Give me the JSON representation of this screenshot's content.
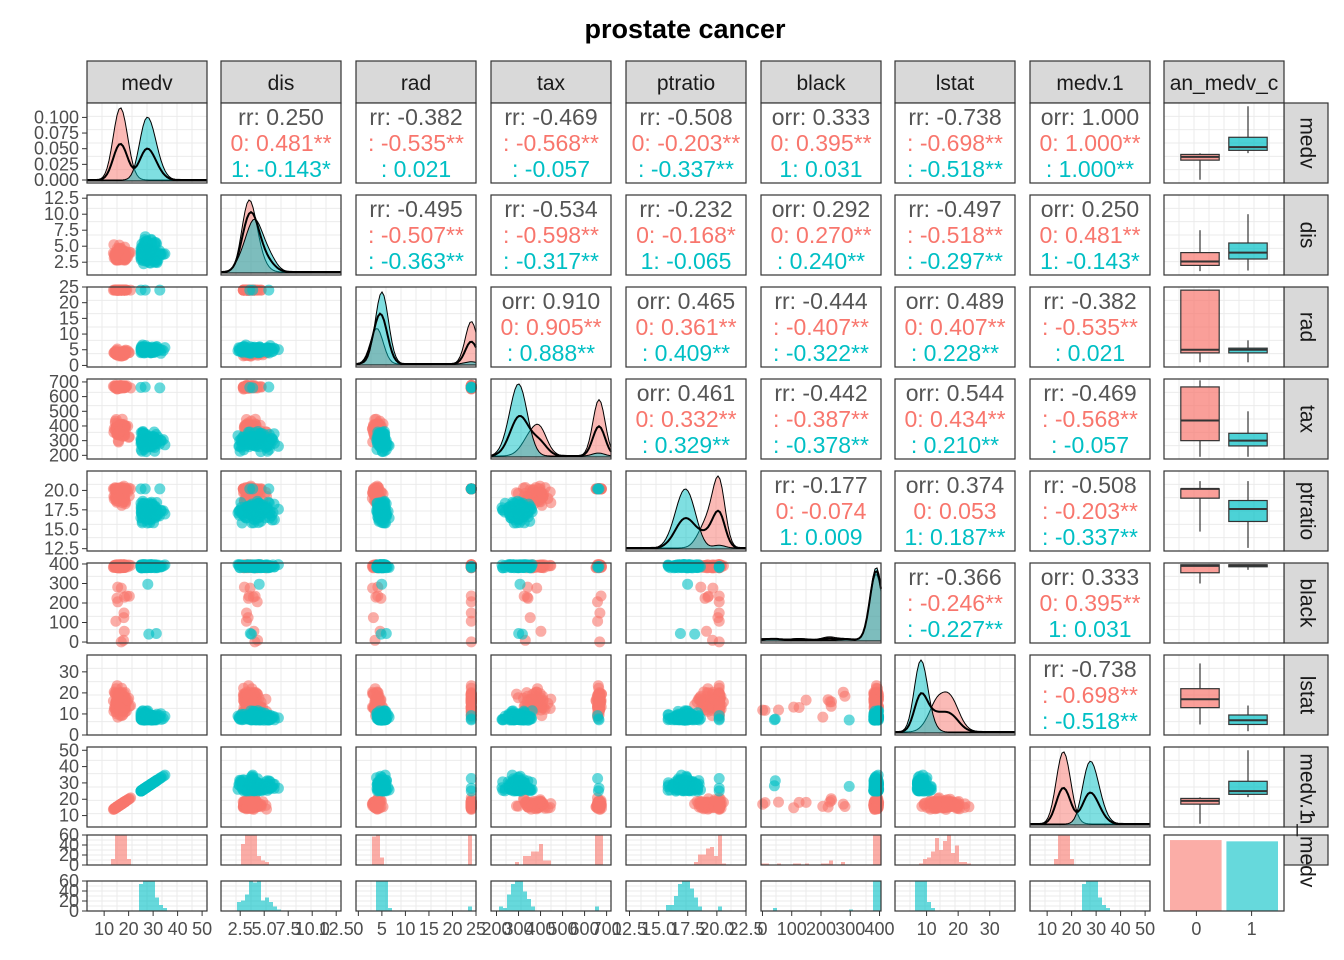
{
  "chart_data": {
    "type": "scatter",
    "title": "prostate cancer",
    "variables": [
      "medv",
      "dis",
      "rad",
      "tax",
      "ptratio",
      "black",
      "lstat",
      "medv.1",
      "median_medv_cat"
    ],
    "strip_labels": [
      "medv",
      "dis",
      "rad",
      "tax",
      "ptratio",
      "black",
      "lstat",
      "medv.1",
      "an_medv_c"
    ],
    "right_strip_labels": [
      "medv",
      "dis",
      "rad",
      "tax",
      "ptratio",
      "black",
      "lstat",
      "medv.1",
      "n_medv"
    ],
    "groups": [
      "0",
      "1"
    ],
    "colors": {
      "0": "#F8766D",
      "1": "#00BFC4",
      "overall": "#555555"
    },
    "correlations": [
      {
        "row": 0,
        "col": 1,
        "corr": "rr: 0.250",
        "g0": "0: 0.481**",
        "g1": "1: -0.143*"
      },
      {
        "row": 0,
        "col": 2,
        "corr": "rr: -0.382",
        "g0": ": -0.535**",
        "g1": ": 0.021"
      },
      {
        "row": 0,
        "col": 3,
        "corr": "rr: -0.469",
        "g0": ": -0.568**",
        "g1": ": -0.057"
      },
      {
        "row": 0,
        "col": 4,
        "corr": "rr: -0.508",
        "g0": "0: -0.203**",
        "g1": ": -0.337**"
      },
      {
        "row": 0,
        "col": 5,
        "corr": "orr: 0.333",
        "g0": "0: 0.395**",
        "g1": "1: 0.031"
      },
      {
        "row": 0,
        "col": 6,
        "corr": "rr: -0.738",
        "g0": ": -0.698**",
        "g1": ": -0.518**"
      },
      {
        "row": 0,
        "col": 7,
        "corr": "orr: 1.000",
        "g0": "0: 1.000**",
        "g1": ": 1.000**"
      },
      {
        "row": 1,
        "col": 2,
        "corr": "rr: -0.495",
        "g0": ": -0.507**",
        "g1": ": -0.363**"
      },
      {
        "row": 1,
        "col": 3,
        "corr": "rr: -0.534",
        "g0": ": -0.598**",
        "g1": ": -0.317**"
      },
      {
        "row": 1,
        "col": 4,
        "corr": "rr: -0.232",
        "g0": "0: -0.168*",
        "g1": "1: -0.065"
      },
      {
        "row": 1,
        "col": 5,
        "corr": "orr: 0.292",
        "g0": "0: 0.270**",
        "g1": ": 0.240**"
      },
      {
        "row": 1,
        "col": 6,
        "corr": "rr: -0.497",
        "g0": ": -0.518**",
        "g1": ": -0.297**"
      },
      {
        "row": 1,
        "col": 7,
        "corr": "orr: 0.250",
        "g0": "0: 0.481**",
        "g1": "1: -0.143*"
      },
      {
        "row": 2,
        "col": 3,
        "corr": "orr: 0.910",
        "g0": "0: 0.905**",
        "g1": ": 0.888**"
      },
      {
        "row": 2,
        "col": 4,
        "corr": "orr: 0.465",
        "g0": "0: 0.361**",
        "g1": ": 0.409**"
      },
      {
        "row": 2,
        "col": 5,
        "corr": "rr: -0.444",
        "g0": ": -0.407**",
        "g1": ": -0.322**"
      },
      {
        "row": 2,
        "col": 6,
        "corr": "orr: 0.489",
        "g0": "0: 0.407**",
        "g1": ": 0.228**"
      },
      {
        "row": 2,
        "col": 7,
        "corr": "rr: -0.382",
        "g0": ": -0.535**",
        "g1": ": 0.021"
      },
      {
        "row": 3,
        "col": 4,
        "corr": "orr: 0.461",
        "g0": "0: 0.332**",
        "g1": ": 0.329**"
      },
      {
        "row": 3,
        "col": 5,
        "corr": "rr: -0.442",
        "g0": ": -0.387**",
        "g1": ": -0.378**"
      },
      {
        "row": 3,
        "col": 6,
        "corr": "orr: 0.544",
        "g0": "0: 0.434**",
        "g1": ": 0.210**"
      },
      {
        "row": 3,
        "col": 7,
        "corr": "rr: -0.469",
        "g0": ": -0.568**",
        "g1": ": -0.057"
      },
      {
        "row": 4,
        "col": 5,
        "corr": "rr: -0.177",
        "g0": "0: -0.074",
        "g1": "1: 0.009"
      },
      {
        "row": 4,
        "col": 6,
        "corr": "orr: 0.374",
        "g0": "0: 0.053",
        "g1": "1: 0.187**"
      },
      {
        "row": 4,
        "col": 7,
        "corr": "rr: -0.508",
        "g0": ": -0.203**",
        "g1": ": -0.337**"
      },
      {
        "row": 5,
        "col": 6,
        "corr": "rr: -0.366",
        "g0": ": -0.246**",
        "g1": ": -0.227**"
      },
      {
        "row": 5,
        "col": 7,
        "corr": "orr: 0.333",
        "g0": "0: 0.395**",
        "g1": "1: 0.031"
      },
      {
        "row": 6,
        "col": 7,
        "corr": "rr: -0.738",
        "g0": ": -0.698**",
        "g1": ": -0.518**"
      }
    ],
    "y_ticks": [
      [
        "0.000",
        "0.025",
        "0.050",
        "0.075",
        "0.100"
      ],
      [
        "2.5",
        "5.0",
        "7.5",
        "10.0",
        "12.5"
      ],
      [
        "0",
        "5",
        "10",
        "15",
        "20",
        "25"
      ],
      [
        "200",
        "300",
        "400",
        "500",
        "600",
        "700"
      ],
      [
        "12.5",
        "15.0",
        "17.5",
        "20.0"
      ],
      [
        "0",
        "100",
        "200",
        "300",
        "400"
      ],
      [
        "0",
        "10",
        "20",
        "30"
      ],
      [
        "10",
        "20",
        "30",
        "40",
        "50"
      ],
      [
        "0",
        "20",
        "40",
        "60"
      ],
      [
        "0",
        "20",
        "40",
        "60"
      ]
    ],
    "y_tick_values": [
      [
        0,
        0.025,
        0.05,
        0.075,
        0.1
      ],
      [
        2.5,
        5,
        7.5,
        10,
        12.5
      ],
      [
        0,
        5,
        10,
        15,
        20,
        25
      ],
      [
        200,
        300,
        400,
        500,
        600,
        700
      ],
      [
        12.5,
        15,
        17.5,
        20
      ],
      [
        0,
        100,
        200,
        300,
        400
      ],
      [
        0,
        10,
        20,
        30
      ],
      [
        10,
        20,
        30,
        40,
        50
      ],
      [
        0,
        20,
        40,
        60
      ],
      [
        0,
        20,
        40,
        60
      ]
    ],
    "x_ticks": [
      [
        "10",
        "20",
        "30",
        "40",
        "50"
      ],
      [
        "2.5",
        "5.0",
        "7.5",
        "10.0",
        "12.5"
      ],
      [
        "0",
        "5",
        "10",
        "15",
        "20",
        "25"
      ],
      [
        "200",
        "300",
        "400",
        "500",
        "600",
        "700"
      ],
      [
        "12.5",
        "15.0",
        "17.5",
        "20.0",
        "22.5"
      ],
      [
        "0",
        "100",
        "200",
        "300",
        "400"
      ],
      [
        "10",
        "20",
        "30"
      ],
      [
        "10",
        "20",
        "30",
        "40",
        "50"
      ],
      [
        "0",
        "1"
      ]
    ],
    "x_tick_values": [
      [
        10,
        20,
        30,
        40,
        50
      ],
      [
        2.5,
        5,
        7.5,
        10,
        12.5
      ],
      [
        0,
        5,
        10,
        15,
        20,
        25
      ],
      [
        200,
        300,
        400,
        500,
        600,
        700
      ],
      [
        12.5,
        15,
        17.5,
        20,
        22.5
      ],
      [
        0,
        100,
        200,
        300,
        400
      ],
      [
        10,
        20,
        30
      ],
      [
        10,
        20,
        30,
        40,
        50
      ],
      [
        0,
        1
      ]
    ],
    "axis_ranges": {
      "medv": [
        3,
        52
      ],
      "dis": [
        0.5,
        13.0
      ],
      "rad": [
        -0.5,
        25
      ],
      "tax": [
        175,
        720
      ],
      "ptratio": [
        12.2,
        22.5
      ],
      "black": [
        -5,
        405
      ],
      "lstat": [
        0,
        38
      ],
      "medv.1": [
        3,
        52
      ]
    },
    "group_summary": {
      "medv": {
        "0": {
          "min": 5,
          "q1": 17,
          "median": 19,
          "q3": 20.5,
          "max": 21.2
        },
        "1": {
          "min": 21.3,
          "q1": 23,
          "median": 25,
          "q3": 31,
          "max": 50
        }
      },
      "dis": {
        "0": {
          "min": 1.1,
          "q1": 2,
          "median": 2.6,
          "q3": 4,
          "max": 7.5
        },
        "1": {
          "min": 1.2,
          "q1": 3,
          "median": 4,
          "q3": 5.5,
          "max": 10
        }
      },
      "rad": {
        "0": {
          "min": 1,
          "q1": 4,
          "median": 5,
          "q3": 24,
          "max": 24
        },
        "1": {
          "min": 1,
          "q1": 4,
          "median": 5,
          "q3": 5.5,
          "max": 8
        }
      },
      "tax": {
        "0": {
          "min": 190,
          "q1": 300,
          "median": 437,
          "q3": 666,
          "max": 711
        },
        "1": {
          "min": 190,
          "q1": 264,
          "median": 300,
          "q3": 350,
          "max": 500
        }
      },
      "ptratio": {
        "0": {
          "min": 14.7,
          "q1": 19,
          "median": 20.2,
          "q3": 20.2,
          "max": 21.2
        },
        "1": {
          "min": 12.6,
          "q1": 16,
          "median": 17.6,
          "q3": 18.7,
          "max": 21.2
        }
      },
      "black": {
        "0": {
          "min": 300,
          "q1": 355,
          "median": 390,
          "q3": 396,
          "max": 397
        },
        "1": {
          "min": 370,
          "q1": 388,
          "median": 393,
          "q3": 396,
          "max": 397
        }
      },
      "lstat": {
        "0": {
          "min": 5,
          "q1": 13,
          "median": 17,
          "q3": 22,
          "max": 34
        },
        "1": {
          "min": 1.8,
          "q1": 5,
          "median": 7,
          "q3": 9.5,
          "max": 14
        }
      },
      "medv.1": {
        "0": {
          "min": 5,
          "q1": 17,
          "median": 19,
          "q3": 20.5,
          "max": 21.2
        },
        "1": {
          "min": 21.3,
          "q1": 23,
          "median": 25,
          "q3": 31,
          "max": 50
        }
      }
    },
    "category_counts": {
      "0": 56,
      "1": 55
    },
    "grid": true,
    "legend": "none"
  }
}
